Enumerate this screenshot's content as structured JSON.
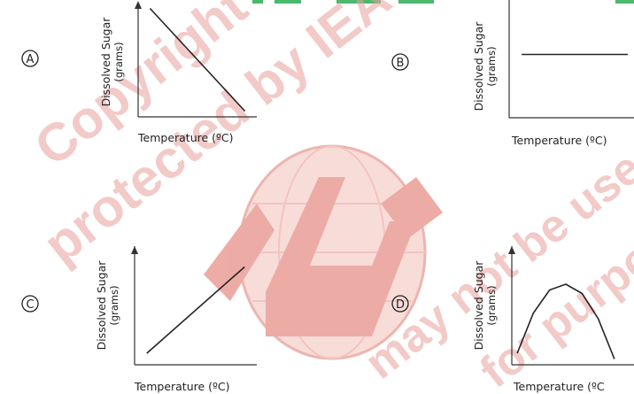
{
  "watermark": {
    "lines": [
      "Copyright",
      "protected by IEA",
      "may not be used",
      "for purposes"
    ],
    "color": "#e06a60"
  },
  "chart_data": [
    {
      "option": "A",
      "type": "line",
      "shape": "decreasing linear",
      "xlabel": "Temperature (ºC)",
      "ylabel": "Dissolved Sugar",
      "ylabel_unit": "(grams)",
      "x": [
        0.1,
        0.9
      ],
      "y": [
        0.95,
        0.05
      ],
      "xlim": [
        0,
        1
      ],
      "ylim": [
        0,
        1
      ],
      "ticks": "none"
    },
    {
      "option": "B",
      "type": "line",
      "shape": "constant",
      "xlabel": "Temperature (ºC)",
      "ylabel": "Dissolved Sugar",
      "ylabel_unit": "(grams)",
      "x": [
        0.1,
        0.95
      ],
      "y": [
        0.55,
        0.55
      ],
      "xlim": [
        0,
        1
      ],
      "ylim": [
        0,
        1
      ],
      "ticks": "none"
    },
    {
      "option": "C",
      "type": "line",
      "shape": "increasing linear",
      "xlabel": "Temperature (ºC)",
      "ylabel": "Dissolved Sugar",
      "ylabel_unit": "(grams)",
      "x": [
        0.1,
        0.9
      ],
      "y": [
        0.1,
        0.85
      ],
      "xlim": [
        0,
        1
      ],
      "ylim": [
        0,
        1
      ],
      "ticks": "none"
    },
    {
      "option": "D",
      "type": "line",
      "shape": "rises then falls",
      "xlabel": "Temperature (ºC",
      "ylabel": "Dissolved Sugar",
      "ylabel_unit": "(grams)",
      "x": [
        0.05,
        0.2,
        0.35,
        0.5,
        0.65,
        0.8,
        0.95
      ],
      "y": [
        0.1,
        0.45,
        0.65,
        0.7,
        0.62,
        0.4,
        0.05
      ],
      "xlim": [
        0,
        1
      ],
      "ylim": [
        0,
        1
      ],
      "ticks": "none"
    }
  ]
}
